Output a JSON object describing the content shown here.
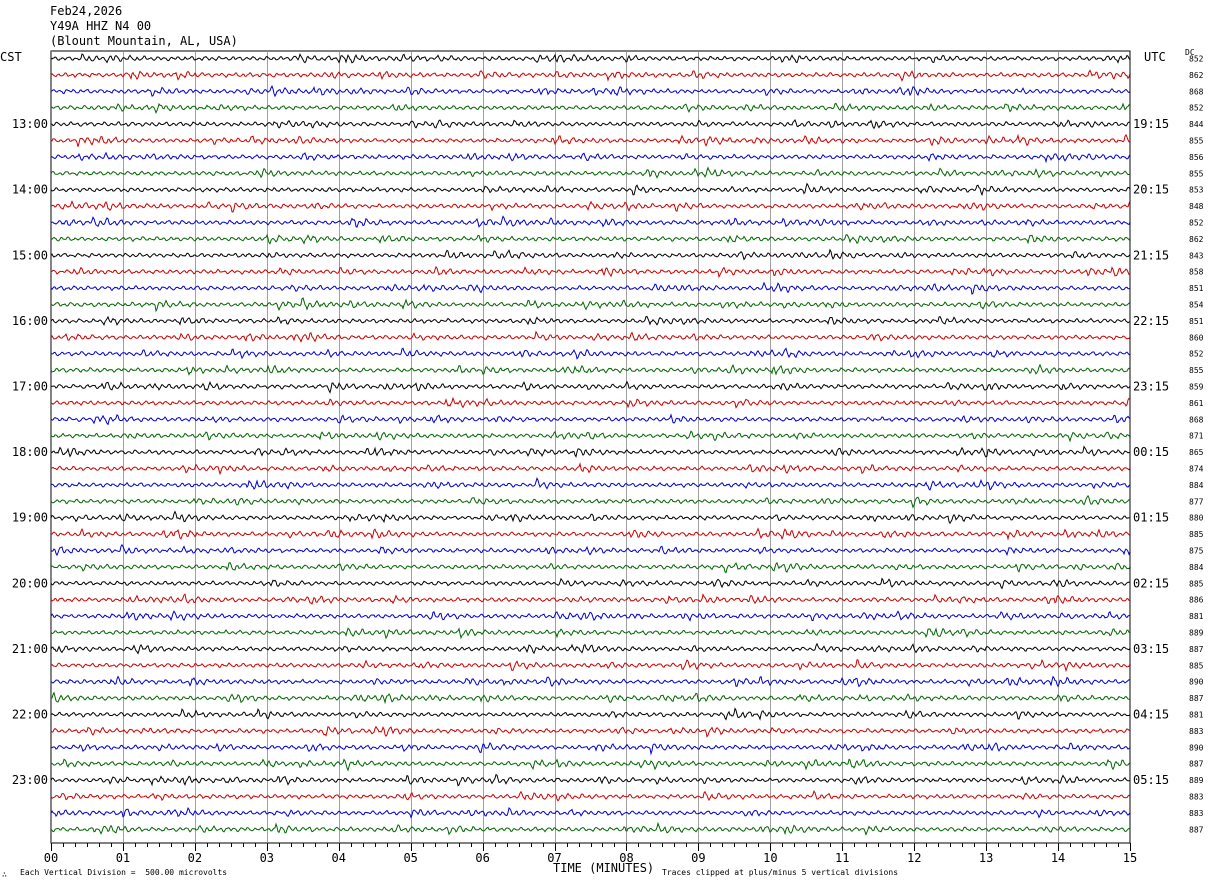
{
  "header": {
    "date": "Feb24,2026",
    "station": "Y49A HHZ N4 00",
    "location": "(Blount Mountain, AL, USA)"
  },
  "left_timezone": "CST",
  "right_timezone": "UTC",
  "dc_header": "DC",
  "footer": {
    "scale_note": "Each Vertical Division =  500.00 microvolts",
    "clip_note": "Traces clipped at plus/minus 5 vertical divisions",
    "small_mark": "∴"
  },
  "chart_data": {
    "type": "line",
    "title": "",
    "xlabel": "TIME (MINUTES)",
    "ylabel": "",
    "xlim": [
      0,
      15
    ],
    "x_ticks": [
      "00",
      "01",
      "02",
      "03",
      "04",
      "05",
      "06",
      "07",
      "08",
      "09",
      "10",
      "11",
      "12",
      "13",
      "14",
      "15"
    ],
    "grid": "vertical lines at each minute",
    "trace_colors": [
      "#000000",
      "#cc0000",
      "#0000cc",
      "#006600"
    ],
    "left_hour_labels": [
      "13:00",
      "14:00",
      "15:00",
      "16:00",
      "17:00",
      "18:00",
      "19:00",
      "20:00",
      "21:00",
      "22:00",
      "23:00"
    ],
    "right_hour_labels": [
      "19:15",
      "20:15",
      "21:15",
      "22:15",
      "23:15",
      "00:15",
      "01:15",
      "02:15",
      "03:15",
      "04:15",
      "05:15"
    ],
    "dc_offsets": [
      "852",
      "862",
      "868",
      "852",
      "844",
      "855",
      "856",
      "855",
      "853",
      "848",
      "852",
      "862",
      "843",
      "858",
      "851",
      "854",
      "851",
      "860",
      "852",
      "855",
      "859",
      "861",
      "868",
      "871",
      "865",
      "874",
      "884",
      "877",
      "880",
      "885",
      "875",
      "884",
      "885",
      "886",
      "881",
      "889",
      "887",
      "885",
      "890",
      "887",
      "881",
      "883",
      "890",
      "887",
      "889",
      "883",
      "883",
      "887"
    ]
  }
}
